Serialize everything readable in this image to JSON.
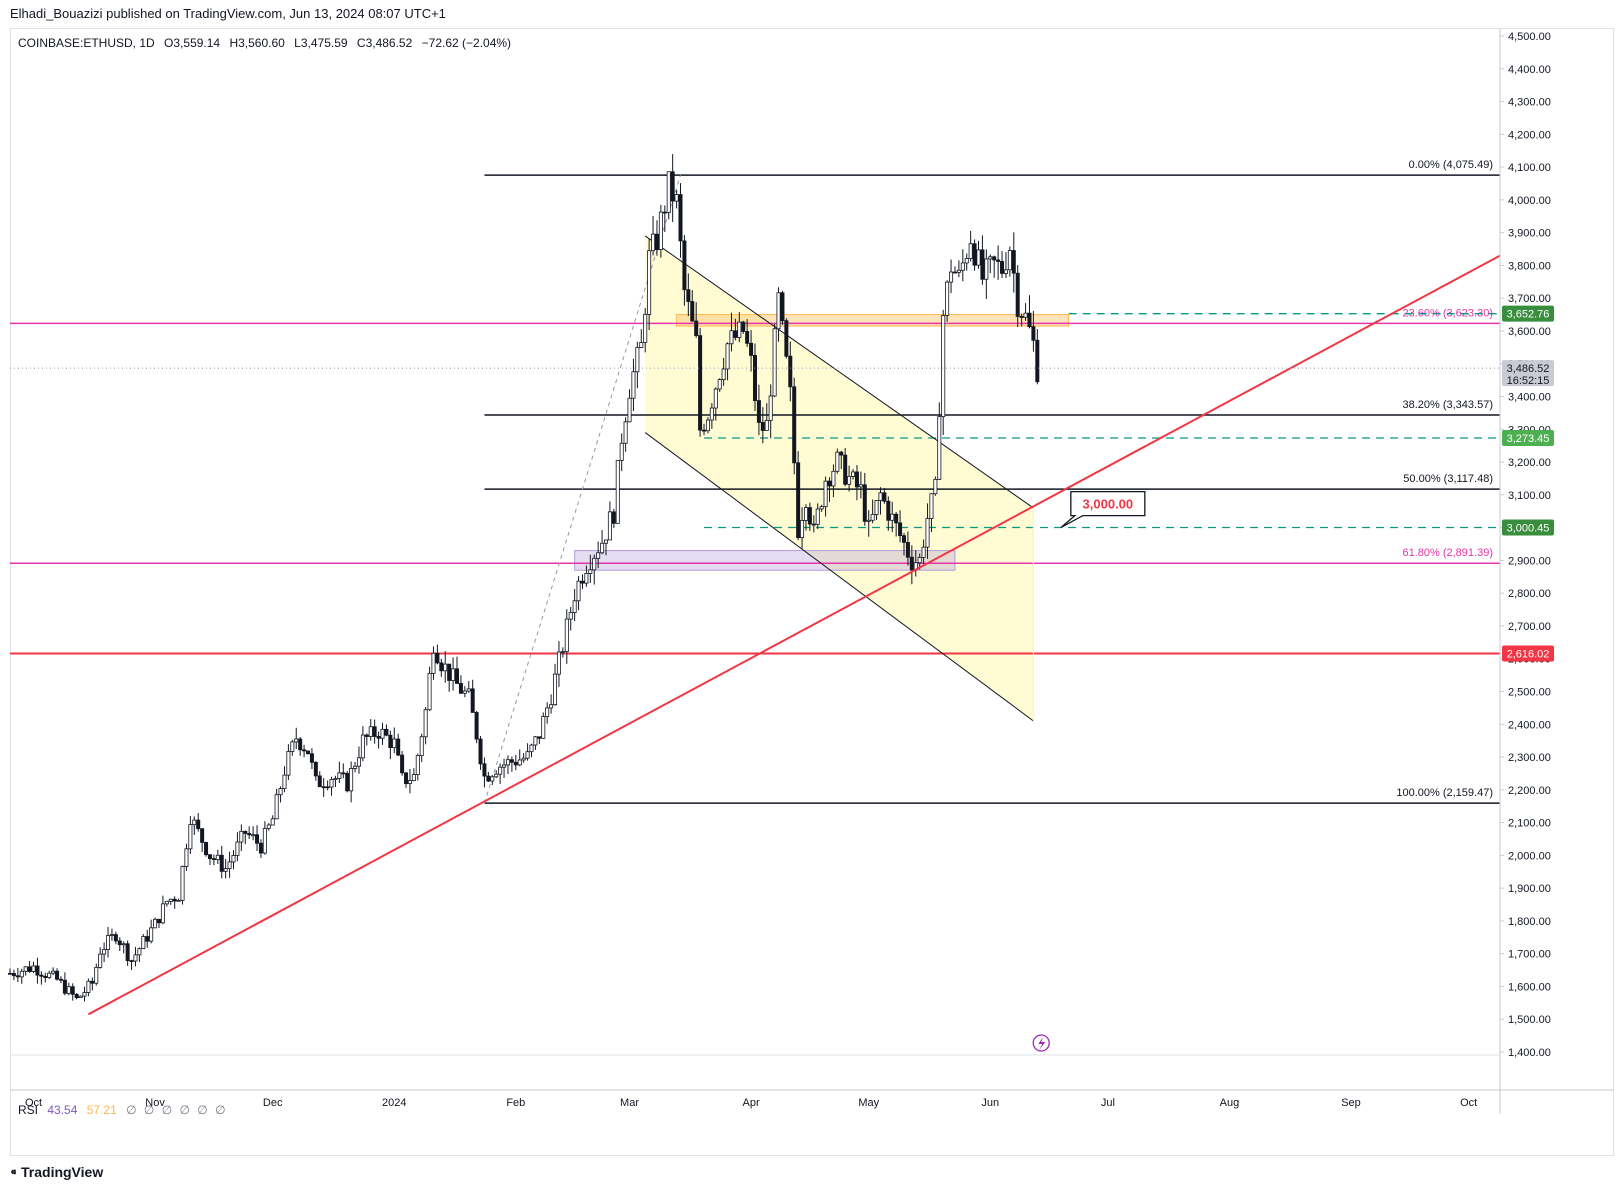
{
  "header": {
    "publisher": "Elhadi_Bouazizi published on TradingView.com, Jun 13, 2024 08:07 UTC+1"
  },
  "legend": {
    "symbol": "COINBASE:ETHUSD, 1D",
    "open": "O3,559.14",
    "high": "H3,560.60",
    "low": "L3,475.59",
    "close": "C3,486.52",
    "change": "−72.62 (−2.04%)"
  },
  "rsi": {
    "label": "RSI",
    "value1": "43.54",
    "value2": "57.21",
    "empty_glyph": "∅"
  },
  "footer": {
    "brand": "TradingView",
    "logo_glyph": "⁌"
  },
  "colors": {
    "up": "#131722",
    "down": "#131722",
    "red_line": "#f23645",
    "fib": "#131722",
    "fib_pink": "#e535ab",
    "green_dash": "#089981",
    "channel_fill": "#fff9c4",
    "purple_zone": "#b39ddb",
    "orange_zone": "#ffcc80",
    "axis_text": "#131722",
    "grid": "#f0f3fa"
  },
  "chart_data": {
    "type": "candlestick",
    "symbol": "COINBASE:ETHUSD",
    "interval": "1D",
    "y_axis": {
      "ylim": [
        1400,
        4500
      ],
      "ticks": [
        "4,500.00",
        "4,400.00",
        "4,300.00",
        "4,200.00",
        "4,100.00",
        "4,000.00",
        "3,900.00",
        "3,800.00",
        "3,700.00",
        "3,600.00",
        "3,500.00",
        "3,400.00",
        "3,300.00",
        "3,200.00",
        "3,100.00",
        "3,000.00",
        "2,900.00",
        "2,800.00",
        "2,700.00",
        "2,600.00",
        "2,500.00",
        "2,400.00",
        "2,300.00",
        "2,200.00",
        "2,100.00",
        "2,000.00",
        "1,900.00",
        "1,800.00",
        "1,700.00",
        "1,600.00",
        "1,500.00",
        "1,400.00"
      ],
      "tick_values": [
        4500,
        4400,
        4300,
        4200,
        4100,
        4000,
        3900,
        3800,
        3700,
        3600,
        3500,
        3400,
        3300,
        3200,
        3100,
        3000,
        2900,
        2800,
        2700,
        2600,
        2500,
        2400,
        2300,
        2200,
        2100,
        2000,
        1900,
        1800,
        1700,
        1600,
        1500,
        1400
      ]
    },
    "x_axis": {
      "labels": [
        "Oct",
        "Nov",
        "Dec",
        "2024",
        "Feb",
        "Mar",
        "Apr",
        "May",
        "Jun",
        "Jul",
        "Aug",
        "Sep",
        "Oct"
      ],
      "label_dates": [
        "2023-10-01",
        "2023-11-01",
        "2023-12-01",
        "2024-01-01",
        "2024-02-01",
        "2024-03-01",
        "2024-04-01",
        "2024-05-01",
        "2024-06-01",
        "2024-07-01",
        "2024-08-01",
        "2024-09-01",
        "2024-10-01"
      ],
      "range": [
        "2023-09-25",
        "2024-10-09"
      ]
    },
    "price_path": [
      [
        "2023-09-25",
        1640
      ],
      [
        "2023-10-01",
        1660
      ],
      [
        "2023-10-07",
        1620
      ],
      [
        "2023-10-12",
        1560
      ],
      [
        "2023-10-16",
        1610
      ],
      [
        "2023-10-18",
        1710
      ],
      [
        "2023-10-22",
        1760
      ],
      [
        "2023-10-26",
        1680
      ],
      [
        "2023-11-01",
        1790
      ],
      [
        "2023-11-04",
        1860
      ],
      [
        "2023-11-07",
        1880
      ],
      [
        "2023-11-10",
        2120
      ],
      [
        "2023-11-12",
        2070
      ],
      [
        "2023-11-15",
        2000
      ],
      [
        "2023-11-19",
        1960
      ],
      [
        "2023-11-24",
        2070
      ],
      [
        "2023-11-28",
        2030
      ],
      [
        "2023-12-01",
        2110
      ],
      [
        "2023-12-04",
        2260
      ],
      [
        "2023-12-07",
        2360
      ],
      [
        "2023-12-10",
        2320
      ],
      [
        "2023-12-12",
        2220
      ],
      [
        "2023-12-16",
        2240
      ],
      [
        "2023-12-20",
        2220
      ],
      [
        "2023-12-24",
        2350
      ],
      [
        "2023-12-28",
        2380
      ],
      [
        "2024-01-01",
        2340
      ],
      [
        "2024-01-03",
        2230
      ],
      [
        "2024-01-06",
        2240
      ],
      [
        "2024-01-09",
        2440
      ],
      [
        "2024-01-11",
        2650
      ],
      [
        "2024-01-13",
        2590
      ],
      [
        "2024-01-17",
        2520
      ],
      [
        "2024-01-20",
        2480
      ],
      [
        "2024-01-22",
        2370
      ],
      [
        "2024-01-24",
        2240
      ],
      [
        "2024-01-27",
        2270
      ],
      [
        "2024-02-01",
        2290
      ],
      [
        "2024-02-04",
        2300
      ],
      [
        "2024-02-07",
        2370
      ],
      [
        "2024-02-10",
        2490
      ],
      [
        "2024-02-13",
        2640
      ],
      [
        "2024-02-16",
        2800
      ],
      [
        "2024-02-19",
        2890
      ],
      [
        "2024-02-23",
        2960
      ],
      [
        "2024-02-26",
        3050
      ],
      [
        "2024-02-28",
        3280
      ],
      [
        "2024-03-01",
        3430
      ],
      [
        "2024-03-04",
        3550
      ],
      [
        "2024-03-06",
        3820
      ],
      [
        "2024-03-08",
        3880
      ],
      [
        "2024-03-11",
        4040
      ],
      [
        "2024-03-13",
        3990
      ],
      [
        "2024-03-15",
        3720
      ],
      [
        "2024-03-18",
        3560
      ],
      [
        "2024-03-19",
        3300
      ],
      [
        "2024-03-21",
        3350
      ],
      [
        "2024-03-24",
        3480
      ],
      [
        "2024-03-26",
        3560
      ],
      [
        "2024-03-30",
        3600
      ],
      [
        "2024-04-01",
        3500
      ],
      [
        "2024-04-03",
        3300
      ],
      [
        "2024-04-05",
        3310
      ],
      [
        "2024-04-08",
        3690
      ],
      [
        "2024-04-11",
        3400
      ],
      [
        "2024-04-13",
        3000
      ],
      [
        "2024-04-15",
        3100
      ],
      [
        "2024-04-17",
        2980
      ],
      [
        "2024-04-20",
        3150
      ],
      [
        "2024-04-23",
        3200
      ],
      [
        "2024-04-26",
        3150
      ],
      [
        "2024-04-29",
        3110
      ],
      [
        "2024-05-01",
        2990
      ],
      [
        "2024-05-04",
        3100
      ],
      [
        "2024-05-08",
        3000
      ],
      [
        "2024-05-12",
        2900
      ],
      [
        "2024-05-14",
        2900
      ],
      [
        "2024-05-16",
        3030
      ],
      [
        "2024-05-18",
        3110
      ],
      [
        "2024-05-20",
        3650
      ],
      [
        "2024-05-22",
        3800
      ],
      [
        "2024-05-24",
        3760
      ],
      [
        "2024-05-27",
        3890
      ],
      [
        "2024-05-30",
        3760
      ],
      [
        "2024-06-02",
        3800
      ],
      [
        "2024-06-04",
        3790
      ],
      [
        "2024-06-06",
        3860
      ],
      [
        "2024-06-08",
        3690
      ],
      [
        "2024-06-10",
        3640
      ],
      [
        "2024-06-12",
        3560
      ],
      [
        "2024-06-13",
        3486.52
      ]
    ],
    "last_price": 3486.52,
    "countdown": "16:52:15",
    "levels": [
      {
        "label": "0.00% (4,075.49)",
        "value": 4075.49,
        "kind": "fib"
      },
      {
        "label": "23.60% (3,623.30)",
        "value": 3623.3,
        "kind": "fib-pink"
      },
      {
        "label": "38.20% (3,343.57)",
        "value": 3343.57,
        "kind": "fib"
      },
      {
        "label": "50.00% (3,117.48)",
        "value": 3117.48,
        "kind": "fib"
      },
      {
        "label": "61.80% (2,891.39)",
        "value": 2891.39,
        "kind": "fib-pink"
      },
      {
        "label": "100.00% (2,159.47)",
        "value": 2159.47,
        "kind": "fib"
      }
    ],
    "horizontal_red_line": 2616.02,
    "axis_badges": [
      {
        "label": "3,652.76",
        "value": 3652.76,
        "color": "#388e3c"
      },
      {
        "label": "3,273.45",
        "value": 3273.45,
        "color": "#4caf50"
      },
      {
        "label": "3,000.45",
        "value": 3000.45,
        "color": "#388e3c"
      },
      {
        "label": "2,616.02",
        "value": 2616.02,
        "color": "#f23645"
      },
      {
        "label": "3,486.52",
        "value": 3486.52,
        "color": "#c9cbd3"
      }
    ],
    "green_dashed_levels": [
      3652.76,
      3273.45,
      3000.45
    ],
    "callout": {
      "label": "3,000.00",
      "value": 3000
    },
    "trendline": {
      "from": [
        "2023-10-15",
        1515
      ],
      "to": [
        "2024-10-09",
        3830
      ]
    },
    "channel": {
      "upper": [
        [
          "2024-03-05",
          3890
        ],
        [
          "2024-06-12",
          3060
        ]
      ],
      "lower": [
        [
          "2024-03-05",
          3290
        ],
        [
          "2024-06-12",
          2410
        ]
      ]
    }
  }
}
